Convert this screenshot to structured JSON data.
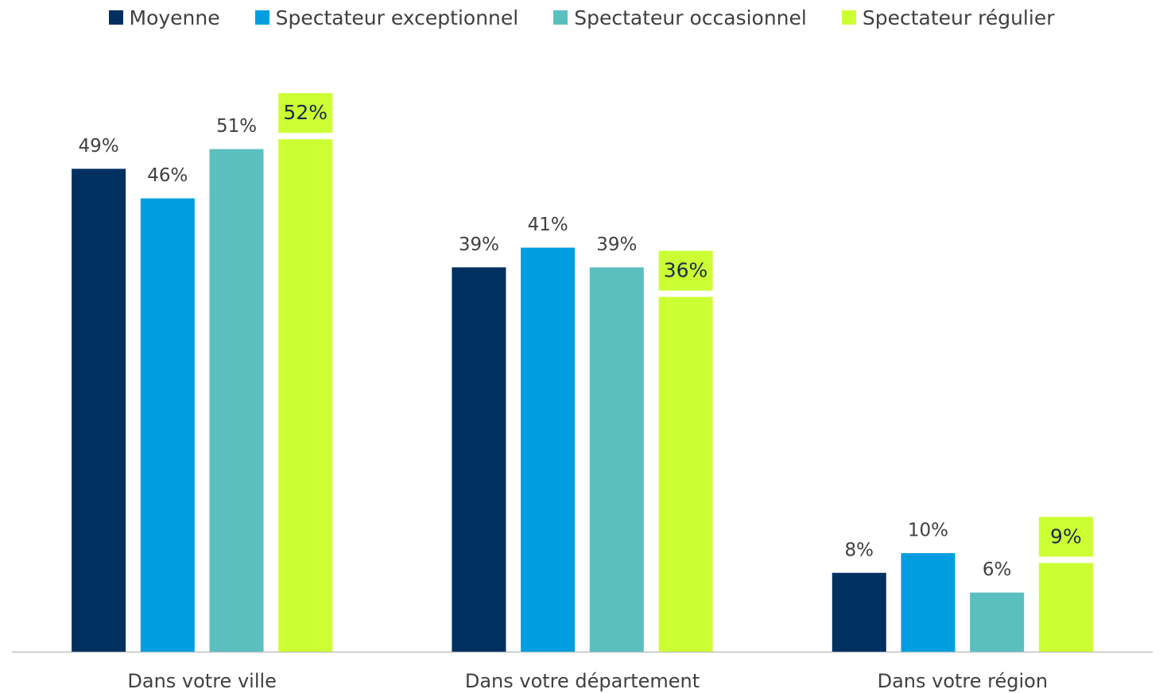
{
  "chart_data": {
    "type": "bar",
    "categories": [
      "Dans votre ville",
      "Dans votre département",
      "Dans votre région"
    ],
    "series": [
      {
        "name": "Moyenne",
        "color": "#003060",
        "values": [
          49,
          39,
          8
        ],
        "value_labels": [
          "49%",
          "39%",
          "8%"
        ]
      },
      {
        "name": "Spectateur exceptionnel",
        "color": "#009ee0",
        "values": [
          46,
          41,
          10
        ],
        "value_labels": [
          "46%",
          "41%",
          "10%"
        ]
      },
      {
        "name": "Spectateur occasionnel",
        "color": "#5bbfbf",
        "values": [
          51,
          39,
          6
        ],
        "value_labels": [
          "51%",
          "39%",
          "6%"
        ]
      },
      {
        "name": "Spectateur régulier",
        "color": "#ccff33",
        "values": [
          52,
          36,
          9
        ],
        "value_labels": [
          "52%",
          "36%",
          "9%"
        ]
      }
    ],
    "legend": "top"
  }
}
